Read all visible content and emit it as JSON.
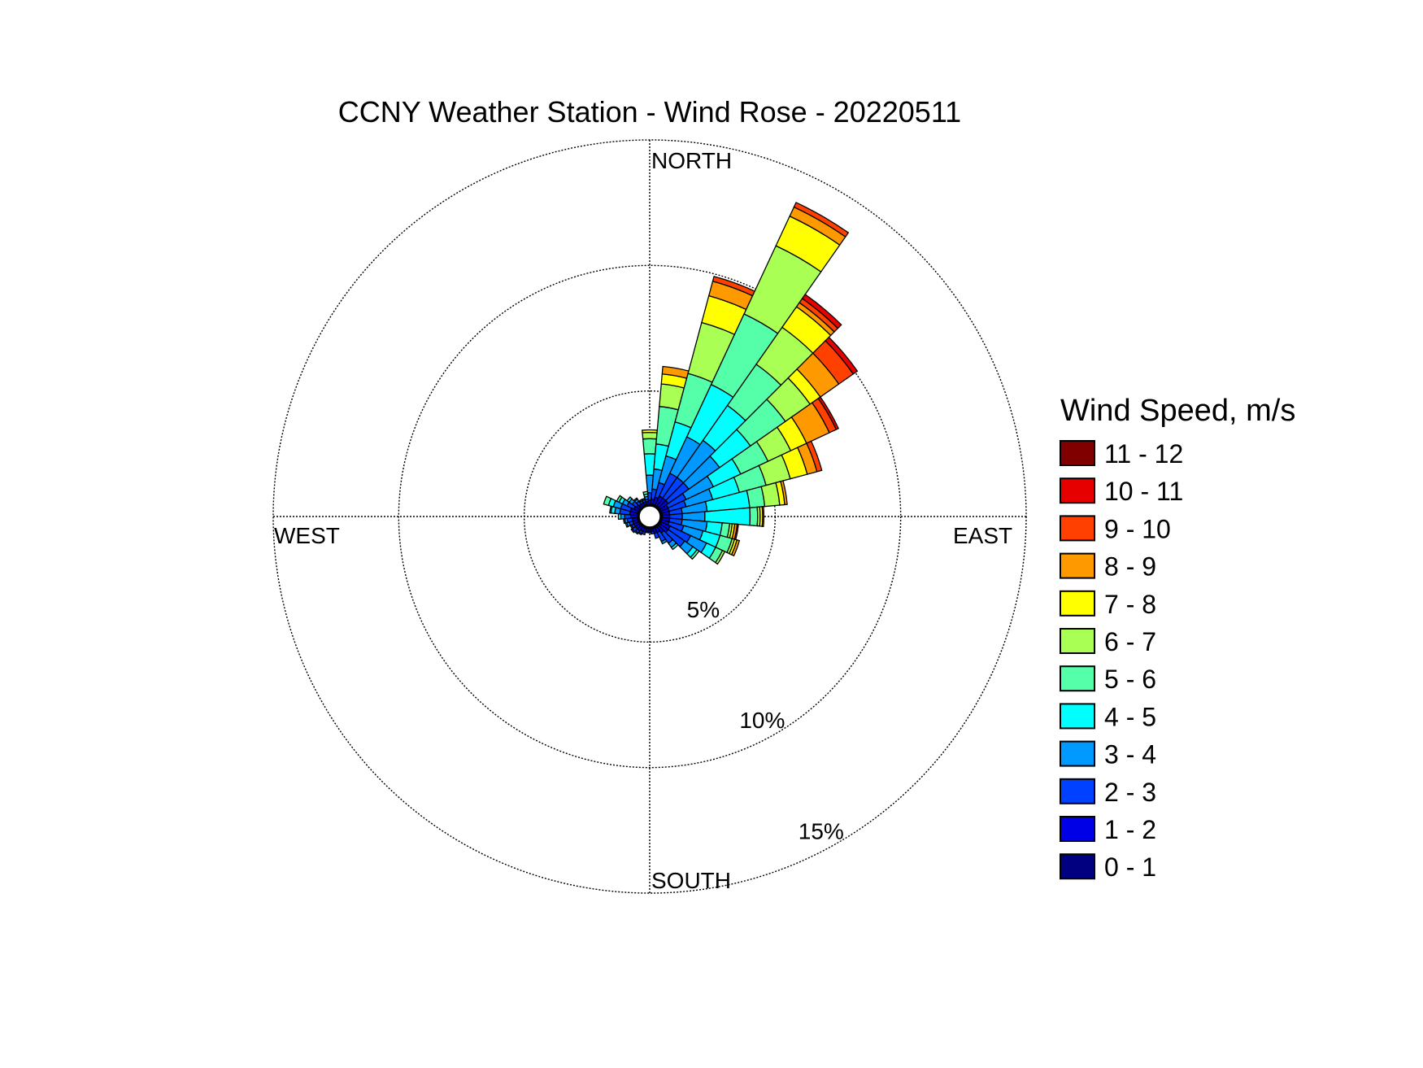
{
  "chart_data": {
    "type": "windrose",
    "title": "CCNY Weather Station - Wind Rose - 20220511",
    "directions": {
      "north": "NORTH",
      "east": "EAST",
      "south": "SOUTH",
      "west": "WEST"
    },
    "radial_axis": {
      "unit": "%",
      "max": 15,
      "ticks": [
        5,
        10,
        15
      ],
      "tick_labels": [
        "5%",
        "10%",
        "15%"
      ]
    },
    "legend": {
      "title": "Wind Speed, m/s",
      "bins": [
        {
          "label": "11 - 12",
          "color": "#800000"
        },
        {
          "label": "10 - 11",
          "color": "#e60000"
        },
        {
          "label": "9 - 10",
          "color": "#ff4000"
        },
        {
          "label": "8 - 9",
          "color": "#ff9900"
        },
        {
          "label": "7 - 8",
          "color": "#ffff00"
        },
        {
          "label": "6 - 7",
          "color": "#aaff55"
        },
        {
          "label": "5 - 6",
          "color": "#55ffaa"
        },
        {
          "label": "4 - 5",
          "color": "#00ffff"
        },
        {
          "label": "3 - 4",
          "color": "#0099ff"
        },
        {
          "label": "2 - 3",
          "color": "#0040ff"
        },
        {
          "label": "1 - 2",
          "color": "#0000e6"
        },
        {
          "label": "0 - 1",
          "color": "#000080"
        }
      ]
    },
    "speed_bins_ascending": [
      "0 - 1",
      "1 - 2",
      "2 - 3",
      "3 - 4",
      "4 - 5",
      "5 - 6",
      "6 - 7",
      "7 - 8",
      "8 - 9",
      "9 - 10",
      "10 - 11",
      "11 - 12"
    ],
    "sector_width_deg": 10,
    "calm_radius_pct": 0.45,
    "sectors": [
      {
        "direction_deg": 0,
        "values": [
          0.05,
          0.15,
          0.3,
          0.7,
          0.85,
          0.6,
          0.25,
          0.1,
          0,
          0,
          0,
          0
        ]
      },
      {
        "direction_deg": 10,
        "values": [
          0.05,
          0.2,
          0.4,
          0.8,
          1.0,
          1.5,
          0.9,
          0.4,
          0.3,
          0,
          0,
          0
        ]
      },
      {
        "direction_deg": 20,
        "values": [
          0.05,
          0.3,
          0.6,
          1.1,
          1.4,
          2.0,
          2.1,
          1.1,
          0.6,
          0.2,
          0,
          0
        ]
      },
      {
        "direction_deg": 30,
        "values": [
          0.05,
          0.4,
          1.0,
          1.6,
          2.3,
          3.1,
          3.0,
          1.3,
          0.4,
          0.2,
          0,
          0
        ]
      },
      {
        "direction_deg": 40,
        "values": [
          0.05,
          0.4,
          1.0,
          1.8,
          1.7,
          2.0,
          1.8,
          1.0,
          0.2,
          0.2,
          0.2,
          0
        ]
      },
      {
        "direction_deg": 50,
        "values": [
          0.05,
          0.4,
          1.0,
          1.5,
          1.5,
          1.7,
          1.2,
          0.5,
          0.9,
          0.7,
          0.2,
          0
        ]
      },
      {
        "direction_deg": 60,
        "values": [
          0.05,
          0.3,
          0.8,
          1.2,
          1.2,
          1.2,
          1.0,
          0.7,
          1.0,
          0.3,
          0.1,
          0
        ]
      },
      {
        "direction_deg": 70,
        "values": [
          0.05,
          0.3,
          0.7,
          1.1,
          1.1,
          1.1,
          1.0,
          0.7,
          0.4,
          0.2,
          0,
          0
        ]
      },
      {
        "direction_deg": 80,
        "values": [
          0.05,
          0.3,
          0.5,
          1.0,
          1.7,
          0.6,
          0.6,
          0.2,
          0.1,
          0,
          0,
          0
        ]
      },
      {
        "direction_deg": 90,
        "values": [
          0.05,
          0.3,
          0.5,
          0.9,
          1.8,
          0.3,
          0.1,
          0.1,
          0.05,
          0,
          0,
          0
        ]
      },
      {
        "direction_deg": 100,
        "values": [
          0.05,
          0.3,
          0.5,
          1.0,
          0.6,
          0.3,
          0.1,
          0.1,
          0.1,
          0.05,
          0,
          0
        ]
      },
      {
        "direction_deg": 110,
        "values": [
          0.05,
          0.3,
          0.6,
          0.8,
          0.7,
          0.5,
          0.1,
          0.1,
          0.1,
          0,
          0,
          0
        ]
      },
      {
        "direction_deg": 120,
        "values": [
          0.05,
          0.4,
          0.9,
          0.7,
          0.4,
          0.3,
          0.1,
          0,
          0,
          0,
          0,
          0
        ]
      },
      {
        "direction_deg": 130,
        "values": [
          0.05,
          0.4,
          0.8,
          0.4,
          0.2,
          0.1,
          0,
          0,
          0,
          0,
          0,
          0
        ]
      },
      {
        "direction_deg": 140,
        "values": [
          0.05,
          0.3,
          0.5,
          0.2,
          0.1,
          0,
          0,
          0,
          0,
          0,
          0,
          0
        ]
      },
      {
        "direction_deg": 150,
        "values": [
          0.05,
          0.2,
          0.4,
          0.1,
          0,
          0,
          0,
          0,
          0,
          0,
          0,
          0
        ]
      },
      {
        "direction_deg": 160,
        "values": [
          0.05,
          0.2,
          0.2,
          0,
          0,
          0,
          0,
          0,
          0,
          0,
          0,
          0
        ]
      },
      {
        "direction_deg": 170,
        "values": [
          0.05,
          0.1,
          0.1,
          0,
          0,
          0,
          0,
          0,
          0,
          0,
          0,
          0
        ]
      },
      {
        "direction_deg": 180,
        "values": [
          0.05,
          0.1,
          0.05,
          0,
          0,
          0,
          0,
          0,
          0,
          0,
          0,
          0
        ]
      },
      {
        "direction_deg": 190,
        "values": [
          0.05,
          0.1,
          0.05,
          0,
          0,
          0,
          0,
          0,
          0,
          0,
          0,
          0
        ]
      },
      {
        "direction_deg": 200,
        "values": [
          0.05,
          0.15,
          0.1,
          0,
          0,
          0,
          0,
          0,
          0,
          0,
          0,
          0
        ]
      },
      {
        "direction_deg": 210,
        "values": [
          0.05,
          0.15,
          0.1,
          0.05,
          0,
          0,
          0,
          0,
          0,
          0,
          0,
          0
        ]
      },
      {
        "direction_deg": 220,
        "values": [
          0.05,
          0.2,
          0.1,
          0.05,
          0,
          0,
          0,
          0,
          0,
          0,
          0,
          0
        ]
      },
      {
        "direction_deg": 230,
        "values": [
          0.05,
          0.2,
          0.15,
          0.05,
          0,
          0,
          0,
          0,
          0,
          0,
          0,
          0
        ]
      },
      {
        "direction_deg": 240,
        "values": [
          0.05,
          0.2,
          0.1,
          0.05,
          0,
          0,
          0,
          0,
          0,
          0,
          0,
          0
        ]
      },
      {
        "direction_deg": 250,
        "values": [
          0.05,
          0.2,
          0.15,
          0.1,
          0.05,
          0,
          0,
          0,
          0,
          0,
          0,
          0
        ]
      },
      {
        "direction_deg": 260,
        "values": [
          0.05,
          0.2,
          0.2,
          0.1,
          0.05,
          0,
          0,
          0,
          0,
          0,
          0,
          0
        ]
      },
      {
        "direction_deg": 270,
        "values": [
          0.05,
          0.25,
          0.25,
          0.15,
          0.1,
          0,
          0,
          0,
          0,
          0,
          0,
          0
        ]
      },
      {
        "direction_deg": 280,
        "values": [
          0.05,
          0.3,
          0.4,
          0.2,
          0.15,
          0.05,
          0,
          0,
          0,
          0,
          0,
          0
        ]
      },
      {
        "direction_deg": 290,
        "values": [
          0.05,
          0.3,
          0.4,
          0.3,
          0.2,
          0.2,
          0,
          0,
          0,
          0,
          0,
          0
        ]
      },
      {
        "direction_deg": 300,
        "values": [
          0.05,
          0.2,
          0.3,
          0.2,
          0.15,
          0.1,
          0,
          0,
          0,
          0,
          0,
          0
        ]
      },
      {
        "direction_deg": 310,
        "values": [
          0.05,
          0.15,
          0.2,
          0.15,
          0.1,
          0,
          0,
          0,
          0,
          0,
          0,
          0
        ]
      },
      {
        "direction_deg": 320,
        "values": [
          0.05,
          0.1,
          0.15,
          0.1,
          0.05,
          0,
          0,
          0,
          0,
          0,
          0,
          0
        ]
      },
      {
        "direction_deg": 330,
        "values": [
          0.05,
          0.1,
          0.1,
          0.05,
          0,
          0,
          0,
          0,
          0,
          0,
          0,
          0
        ]
      },
      {
        "direction_deg": 340,
        "values": [
          0.05,
          0.1,
          0.1,
          0.05,
          0,
          0,
          0,
          0,
          0,
          0,
          0,
          0
        ]
      },
      {
        "direction_deg": 350,
        "values": [
          0.05,
          0.1,
          0.1,
          0.1,
          0.1,
          0.1,
          0,
          0,
          0,
          0,
          0,
          0
        ]
      }
    ]
  }
}
